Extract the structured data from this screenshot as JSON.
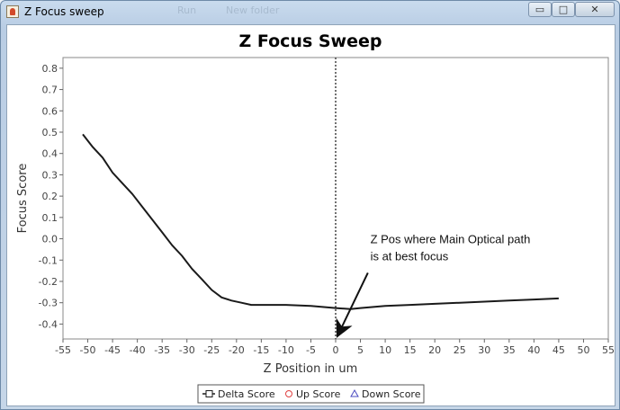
{
  "window": {
    "title": "Z Focus sweep",
    "ghost_menu": [
      "",
      "Run",
      "New folder"
    ],
    "buttons": {
      "minimize": "▭",
      "maximize": "□",
      "close": "✕"
    }
  },
  "colors": {
    "series": "#1a1a1a",
    "up_score": "#e04040",
    "down_score": "#4a4ac0",
    "plot_border": "#888888",
    "marker_line": "#444444"
  },
  "chart_data": {
    "type": "line",
    "title": "Z Focus Sweep",
    "xlabel": "Z Position in um",
    "ylabel": "Focus Score",
    "xlim": [
      -55,
      55
    ],
    "ylim": [
      -0.47,
      0.85
    ],
    "xticks": [
      -55,
      -50,
      -45,
      -40,
      -35,
      -30,
      -25,
      -20,
      -15,
      -10,
      -5,
      0,
      5,
      10,
      15,
      20,
      25,
      30,
      35,
      40,
      45,
      50,
      55
    ],
    "yticks": [
      0.8,
      0.7,
      0.6,
      0.5,
      0.4,
      0.3,
      0.2,
      0.1,
      0.0,
      -0.1,
      -0.2,
      -0.3,
      -0.4
    ],
    "grid": false,
    "vertical_marker_x": 0,
    "series": [
      {
        "name": "Delta Score",
        "x": [
          -51,
          -49,
          -47,
          -45,
          -43,
          -41,
          -39,
          -37,
          -35,
          -33,
          -31,
          -29,
          -27,
          -25,
          -23,
          -21,
          -19,
          -17,
          -15,
          -10,
          -5,
          0,
          3,
          5,
          10,
          15,
          20,
          25,
          30,
          35,
          40,
          45
        ],
        "y": [
          0.49,
          0.43,
          0.38,
          0.31,
          0.26,
          0.21,
          0.15,
          0.09,
          0.03,
          -0.03,
          -0.08,
          -0.14,
          -0.19,
          -0.24,
          -0.275,
          -0.29,
          -0.3,
          -0.31,
          -0.31,
          -0.31,
          -0.315,
          -0.325,
          -0.33,
          -0.325,
          -0.315,
          -0.31,
          -0.305,
          -0.3,
          -0.295,
          -0.29,
          -0.285,
          -0.28
        ]
      },
      {
        "name": "Up Score",
        "x": [],
        "y": []
      },
      {
        "name": "Down Score",
        "x": [],
        "y": []
      }
    ],
    "annotations": [
      {
        "text_lines": [
          "Z Pos where Main Optical path",
          "is at best focus"
        ],
        "arrow_to": [
          0.5,
          -0.45
        ]
      }
    ]
  },
  "legend": {
    "items": [
      "Delta Score",
      "Up Score",
      "Down Score"
    ]
  }
}
